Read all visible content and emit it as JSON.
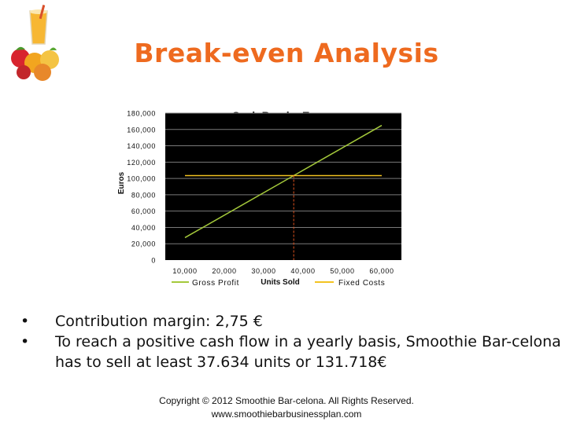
{
  "slide": {
    "title": "Break-even Analysis",
    "bullets": [
      "Contribution margin: 2,75 €",
      "To reach a positive cash flow in a yearly basis, Smoothie Bar-celona has to sell at least 37.634 units or 131.718€"
    ],
    "footer_line1": "Copyright © 2012 Smoothie Bar-celona. All Rights Reserved.",
    "footer_line2": "www.smoothiebarbusinessplan.com",
    "logo_icon": "smoothie-fruit-logo-icon"
  },
  "colors": {
    "title": "#ee6a1f",
    "plot_background": "#000000",
    "gridline": "#7a7a7a",
    "gross_profit": "#a4c93b",
    "fixed_costs": "#f3c321",
    "break_even_marker": "#e0521f"
  },
  "chart_data": {
    "type": "line",
    "title": "Cash Break - Even",
    "xlabel": "Units Sold",
    "ylabel": "Euros",
    "x_ticks": [
      "10,000",
      "20,000",
      "30,000",
      "40,000",
      "50,000",
      "60,000"
    ],
    "y_ticks": [
      "0",
      "20,000",
      "40,000",
      "60,000",
      "80,000",
      "100,000",
      "120,000",
      "140,000",
      "160,000",
      "180,000"
    ],
    "xlim": [
      5000,
      65000
    ],
    "ylim": [
      0,
      180000
    ],
    "grid": true,
    "legend_position": "bottom",
    "series": [
      {
        "name": "Gross Profit",
        "x": [
          10000,
          60000
        ],
        "y": [
          27500,
          165000
        ]
      },
      {
        "name": "Fixed Costs",
        "x": [
          10000,
          60000
        ],
        "y": [
          103500,
          103500
        ]
      }
    ],
    "break_even": {
      "x": 37634,
      "y": 103494
    }
  }
}
